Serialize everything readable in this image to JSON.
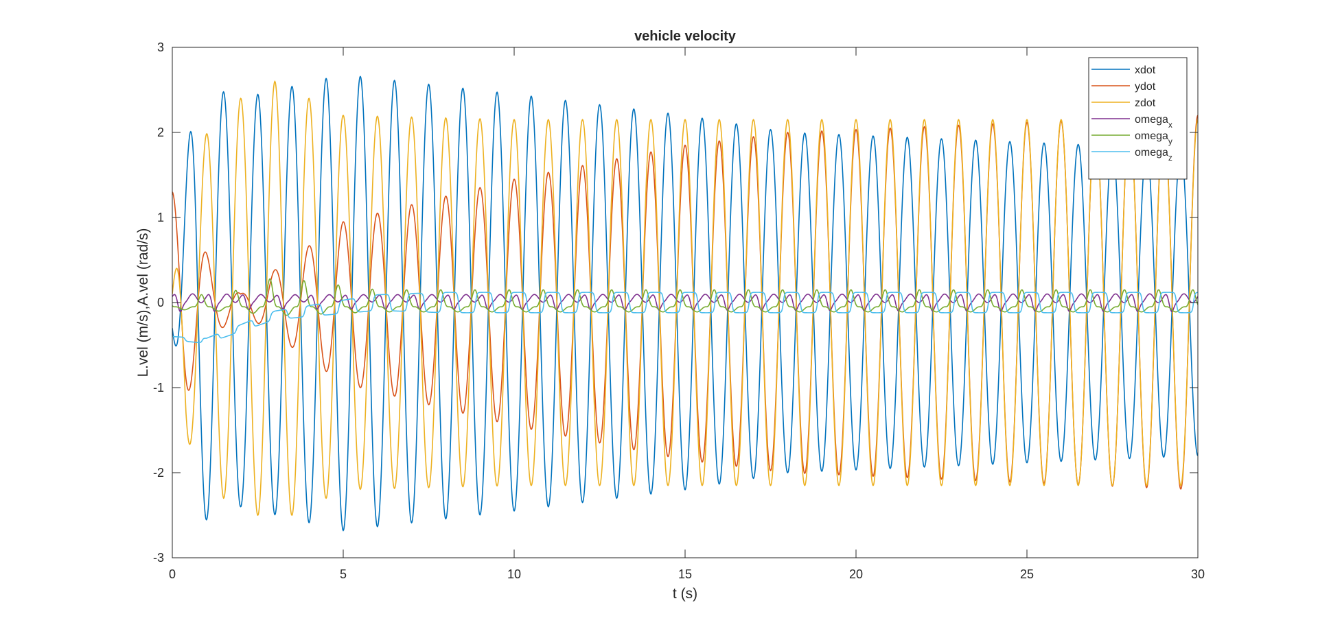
{
  "chart_data": {
    "type": "line",
    "title": "vehicle velocity",
    "xlabel": "t (s)",
    "ylabel": "L.vel (m/s),A.vel (rad/s)",
    "xlim": [
      0,
      30
    ],
    "ylim": [
      -3,
      3
    ],
    "xticks": [
      0,
      5,
      10,
      15,
      20,
      25,
      30
    ],
    "yticks": [
      -3,
      -2,
      -1,
      0,
      1,
      2,
      3
    ],
    "grid": false,
    "legend_position": "top-right",
    "series": [
      {
        "name": "xdot",
        "label_main": "xdot",
        "label_sub": "",
        "color": "#0072BD",
        "model": {
          "kind": "sine",
          "freq": 1.0,
          "phase": 4.712,
          "offset": 0
        },
        "envelope": {
          "t": [
            0,
            0.7,
            2,
            5,
            10,
            15,
            18,
            30
          ],
          "a": [
            0.3,
            2.6,
            2.4,
            2.68,
            2.45,
            2.2,
            2.0,
            1.8
          ]
        }
      },
      {
        "name": "ydot",
        "label_main": "ydot",
        "label_sub": "",
        "color": "#D95319",
        "model": {
          "kind": "sine",
          "freq": 1.0,
          "phase": 1.571,
          "offset": 0
        },
        "envelope": {
          "t": [
            0,
            0.3,
            1.2,
            2,
            5,
            10,
            15,
            18,
            30
          ],
          "a": [
            1.3,
            1.2,
            0.4,
            0.1,
            0.95,
            1.45,
            1.85,
            2.0,
            2.2
          ]
        }
      },
      {
        "name": "zdot",
        "label_main": "zdot",
        "label_sub": "",
        "color": "#EDB120",
        "model": {
          "kind": "sine",
          "freq": 1.0,
          "phase": 1.571,
          "offset": 0
        },
        "envelope": {
          "t": [
            0,
            0.4,
            1.5,
            3,
            5,
            10,
            20,
            30
          ],
          "a": [
            0.1,
            1.6,
            2.3,
            2.6,
            2.2,
            2.15,
            2.15,
            2.15
          ]
        }
      },
      {
        "name": "omega_x",
        "label_main": "omega",
        "label_sub": "x",
        "color": "#7E2F8E",
        "model": {
          "kind": "dips",
          "freq": 1.0,
          "phase": 0.2,
          "offset": 0.05
        },
        "envelope": {
          "t": [
            0,
            1,
            3,
            30
          ],
          "a": [
            0.15,
            0.15,
            0.12,
            0.15
          ]
        }
      },
      {
        "name": "omega_y",
        "label_main": "omega",
        "label_sub": "y",
        "color": "#77AC30",
        "model": {
          "kind": "peaks",
          "freq": 1.0,
          "phase": 2.5,
          "offset": -0.05
        },
        "envelope": {
          "t": [
            0,
            2,
            3,
            4,
            6,
            30
          ],
          "a": [
            0.1,
            0.2,
            0.35,
            0.3,
            0.2,
            0.2
          ]
        }
      },
      {
        "name": "omega_z",
        "label_main": "omega",
        "label_sub": "z",
        "color": "#4DBEEE",
        "model": {
          "kind": "square",
          "freq": 1.0,
          "phase": 0.8,
          "offset": 0
        },
        "drift": {
          "t": [
            0,
            1,
            3,
            6,
            30
          ],
          "v": [
            -0.42,
            -0.45,
            -0.15,
            0,
            0
          ]
        },
        "envelope": {
          "t": [
            0,
            3,
            8,
            30
          ],
          "a": [
            0.02,
            0.05,
            0.12,
            0.12
          ]
        }
      }
    ]
  }
}
